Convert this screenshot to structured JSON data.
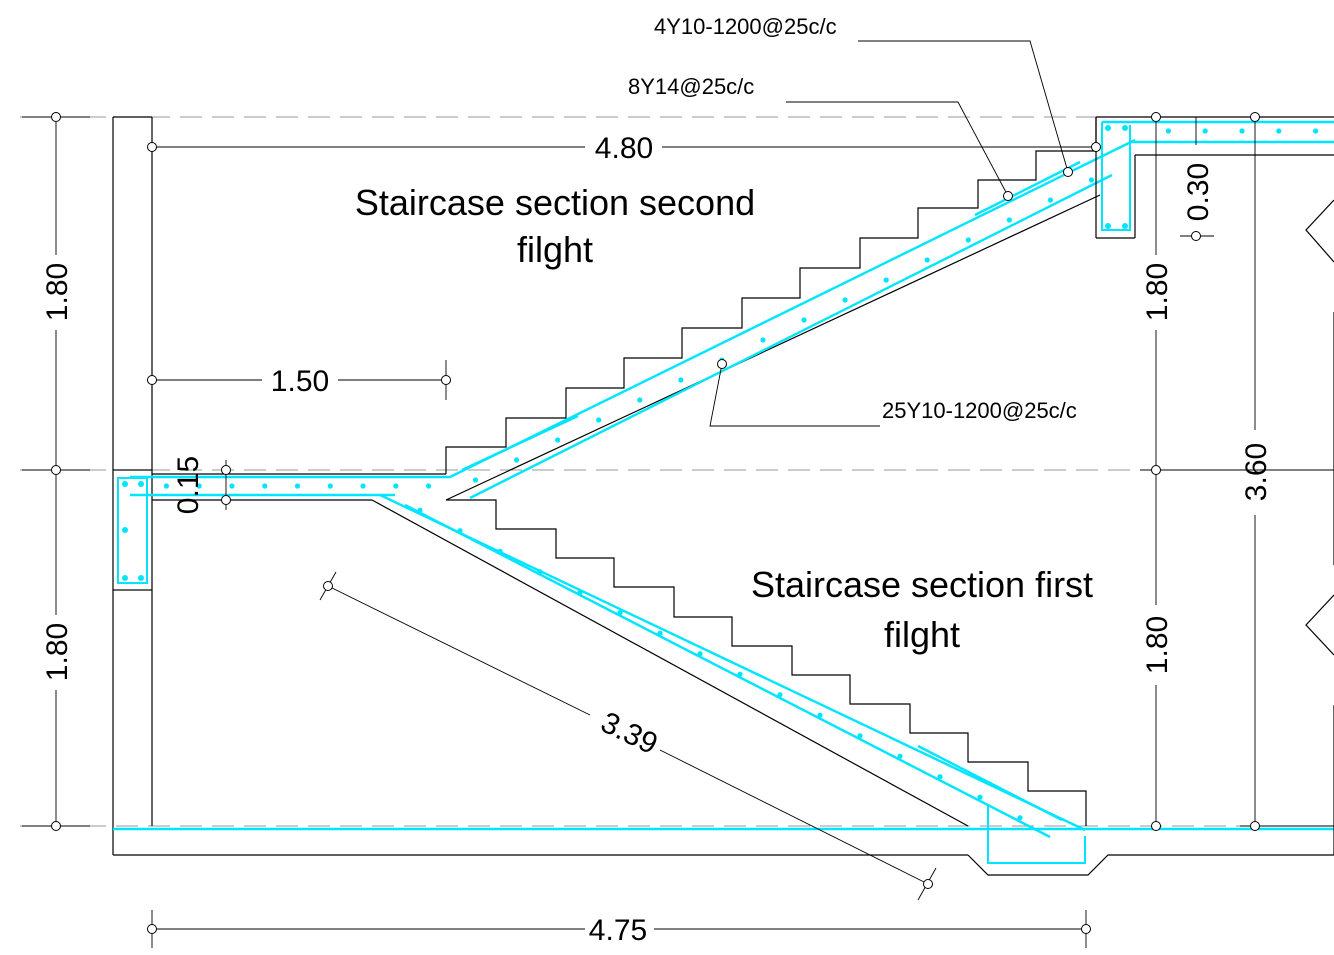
{
  "titles": {
    "second_line1": "Staircase section second",
    "second_line2": "filght",
    "first_line1": "Staircase section first",
    "first_line2": "filght"
  },
  "rebar_labels": {
    "top": "4Y10-1200@25c/c",
    "middle": "8Y14@25c/c",
    "slab": "25Y10-1200@25c/c"
  },
  "dimensions": {
    "top_length": "4.80",
    "landing_length": "1.50",
    "landing_thickness": "0.15",
    "beam_depth": "0.30",
    "left_upper": "1.80",
    "left_lower": "1.80",
    "right_upper": "1.80",
    "right_lower": "1.80",
    "total_height": "3.60",
    "incline_length": "3.39",
    "bottom_length": "4.75"
  },
  "colors": {
    "rebar": "#00e5ff",
    "lines": "#000000",
    "gridlines": "#9a9a9a"
  }
}
